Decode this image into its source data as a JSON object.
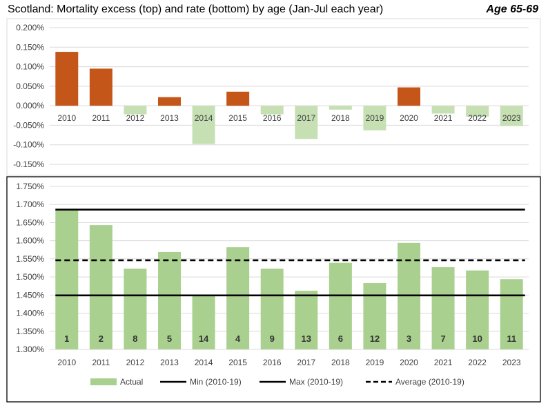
{
  "title": "Scotland: Mortality excess (top) and rate (bottom) by age (Jan-Jul each year)",
  "age_group": "Age 65-69",
  "colors": {
    "positive_bar": "#C5561A",
    "negative_bar": "#C6E0B4",
    "actual_bar": "#A9D08E",
    "reference_line": "#000000",
    "grid": "#D9D9D9",
    "axis_text": "#404040"
  },
  "chart_data": [
    {
      "type": "bar",
      "categories": [
        "2010",
        "2011",
        "2012",
        "2013",
        "2014",
        "2015",
        "2016",
        "2017",
        "2018",
        "2019",
        "2020",
        "2021",
        "2022",
        "2023"
      ],
      "values": [
        0.138,
        0.095,
        -0.022,
        0.022,
        -0.098,
        0.036,
        -0.022,
        -0.085,
        -0.01,
        -0.063,
        0.047,
        -0.02,
        -0.028,
        -0.052
      ],
      "y_ticks": [
        "0.200%",
        "0.150%",
        "0.100%",
        "0.050%",
        "0.000%",
        "-0.050%",
        "-0.100%",
        "-0.150%"
      ],
      "ylim": [
        -0.15,
        0.2
      ],
      "grid": true,
      "value_unit": "%"
    },
    {
      "type": "bar",
      "categories": [
        "2010",
        "2011",
        "2012",
        "2013",
        "2014",
        "2015",
        "2016",
        "2017",
        "2018",
        "2019",
        "2020",
        "2021",
        "2022",
        "2023"
      ],
      "series": [
        {
          "name": "Actual",
          "values": [
            1.686,
            1.643,
            1.523,
            1.569,
            1.449,
            1.582,
            1.523,
            1.462,
            1.539,
            1.483,
            1.594,
            1.527,
            1.518,
            1.494
          ]
        }
      ],
      "ranks": [
        "1",
        "2",
        "8",
        "5",
        "14",
        "4",
        "9",
        "13",
        "6",
        "12",
        "3",
        "7",
        "10",
        "11"
      ],
      "reference_lines": [
        {
          "name": "Min (2010-19)",
          "value": 1.449,
          "style": "solid"
        },
        {
          "name": "Max (2010-19)",
          "value": 1.686,
          "style": "solid"
        },
        {
          "name": "Average (2010-19)",
          "value": 1.546,
          "style": "dashed"
        }
      ],
      "y_ticks": [
        "1.750%",
        "1.700%",
        "1.650%",
        "1.600%",
        "1.550%",
        "1.500%",
        "1.450%",
        "1.400%",
        "1.350%",
        "1.300%"
      ],
      "ylim": [
        1.3,
        1.75
      ],
      "grid": true,
      "legend_position": "bottom",
      "value_unit": "%"
    }
  ]
}
